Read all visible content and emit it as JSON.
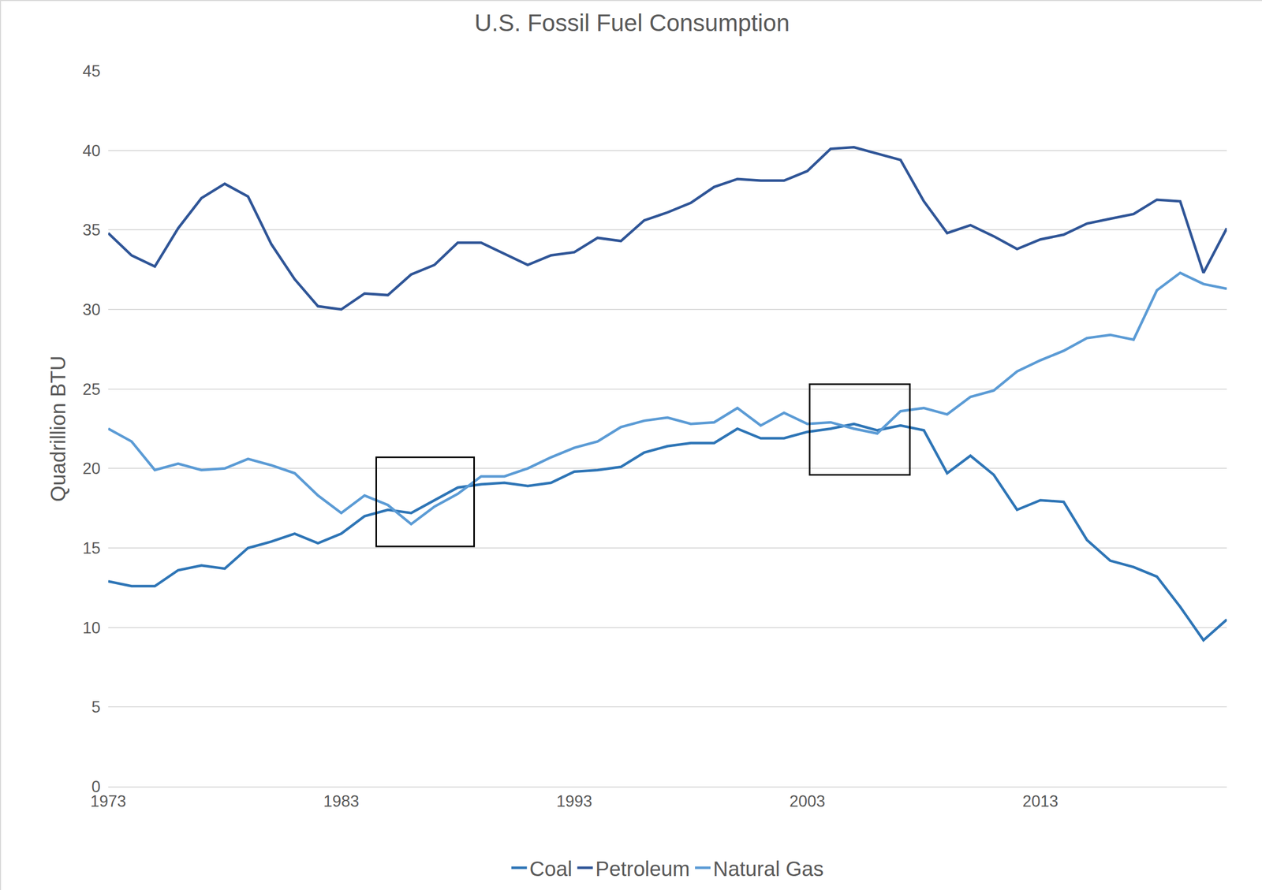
{
  "chart_data": {
    "type": "line",
    "title": "U.S. Fossil Fuel Consumption",
    "y_label": "Quadrillion BTU",
    "x": [
      1973,
      1974,
      1975,
      1976,
      1977,
      1978,
      1979,
      1980,
      1981,
      1982,
      1983,
      1984,
      1985,
      1986,
      1987,
      1988,
      1989,
      1990,
      1991,
      1992,
      1993,
      1994,
      1995,
      1996,
      1997,
      1998,
      1999,
      2000,
      2001,
      2002,
      2003,
      2004,
      2005,
      2006,
      2007,
      2008,
      2009,
      2010,
      2011,
      2012,
      2013,
      2014,
      2015,
      2016,
      2017,
      2018,
      2019,
      2020,
      2021
    ],
    "series": [
      {
        "name": "Coal",
        "color": "#2e75b6",
        "values": [
          12.9,
          12.6,
          12.6,
          13.6,
          13.9,
          13.7,
          15.0,
          15.4,
          15.9,
          15.3,
          15.9,
          17.0,
          17.4,
          17.2,
          18.0,
          18.8,
          19.0,
          19.1,
          18.9,
          19.1,
          19.8,
          19.9,
          20.1,
          21.0,
          21.4,
          21.6,
          21.6,
          22.5,
          21.9,
          21.9,
          22.3,
          22.5,
          22.8,
          22.4,
          22.7,
          22.4,
          19.7,
          20.8,
          19.6,
          17.4,
          18.0,
          17.9,
          15.5,
          14.2,
          13.8,
          13.2,
          11.3,
          9.2,
          10.5
        ]
      },
      {
        "name": "Petroleum",
        "color": "#2f5597",
        "values": [
          34.8,
          33.4,
          32.7,
          35.1,
          37.0,
          37.9,
          37.1,
          34.1,
          31.9,
          30.2,
          30.0,
          31.0,
          30.9,
          32.2,
          32.8,
          34.2,
          34.2,
          33.5,
          32.8,
          33.4,
          33.6,
          34.5,
          34.3,
          35.6,
          36.1,
          36.7,
          37.7,
          38.2,
          38.1,
          38.1,
          38.7,
          40.1,
          40.2,
          39.8,
          39.4,
          36.8,
          34.8,
          35.3,
          34.6,
          33.8,
          34.4,
          34.7,
          35.4,
          35.7,
          36.0,
          36.9,
          36.8,
          32.3,
          35.1
        ]
      },
      {
        "name": "Natural Gas",
        "color": "#5b9bd5",
        "values": [
          22.5,
          21.7,
          19.9,
          20.3,
          19.9,
          20.0,
          20.6,
          20.2,
          19.7,
          18.3,
          17.2,
          18.3,
          17.7,
          16.5,
          17.6,
          18.4,
          19.5,
          19.5,
          20.0,
          20.7,
          21.3,
          21.7,
          22.6,
          23.0,
          23.2,
          22.8,
          22.9,
          23.8,
          22.7,
          23.5,
          22.8,
          22.9,
          22.5,
          22.2,
          23.6,
          23.8,
          23.4,
          24.5,
          24.9,
          26.1,
          26.8,
          27.4,
          28.2,
          28.4,
          28.1,
          31.2,
          32.3,
          31.6,
          31.3
        ]
      }
    ],
    "xlim": [
      1973,
      2021
    ],
    "xticks": [
      1973,
      1983,
      1993,
      2003,
      2013
    ],
    "ylim": [
      0,
      45
    ],
    "yticks": [
      0,
      5,
      10,
      15,
      20,
      25,
      30,
      35,
      40,
      45
    ],
    "grid": true,
    "legend": "bottom",
    "highlight_boxes": [
      {
        "x": [
          1984.5,
          1988.7
        ],
        "y": [
          15.1,
          20.7
        ]
      },
      {
        "x": [
          2003.1,
          2007.4
        ],
        "y": [
          19.6,
          25.3
        ]
      }
    ]
  }
}
